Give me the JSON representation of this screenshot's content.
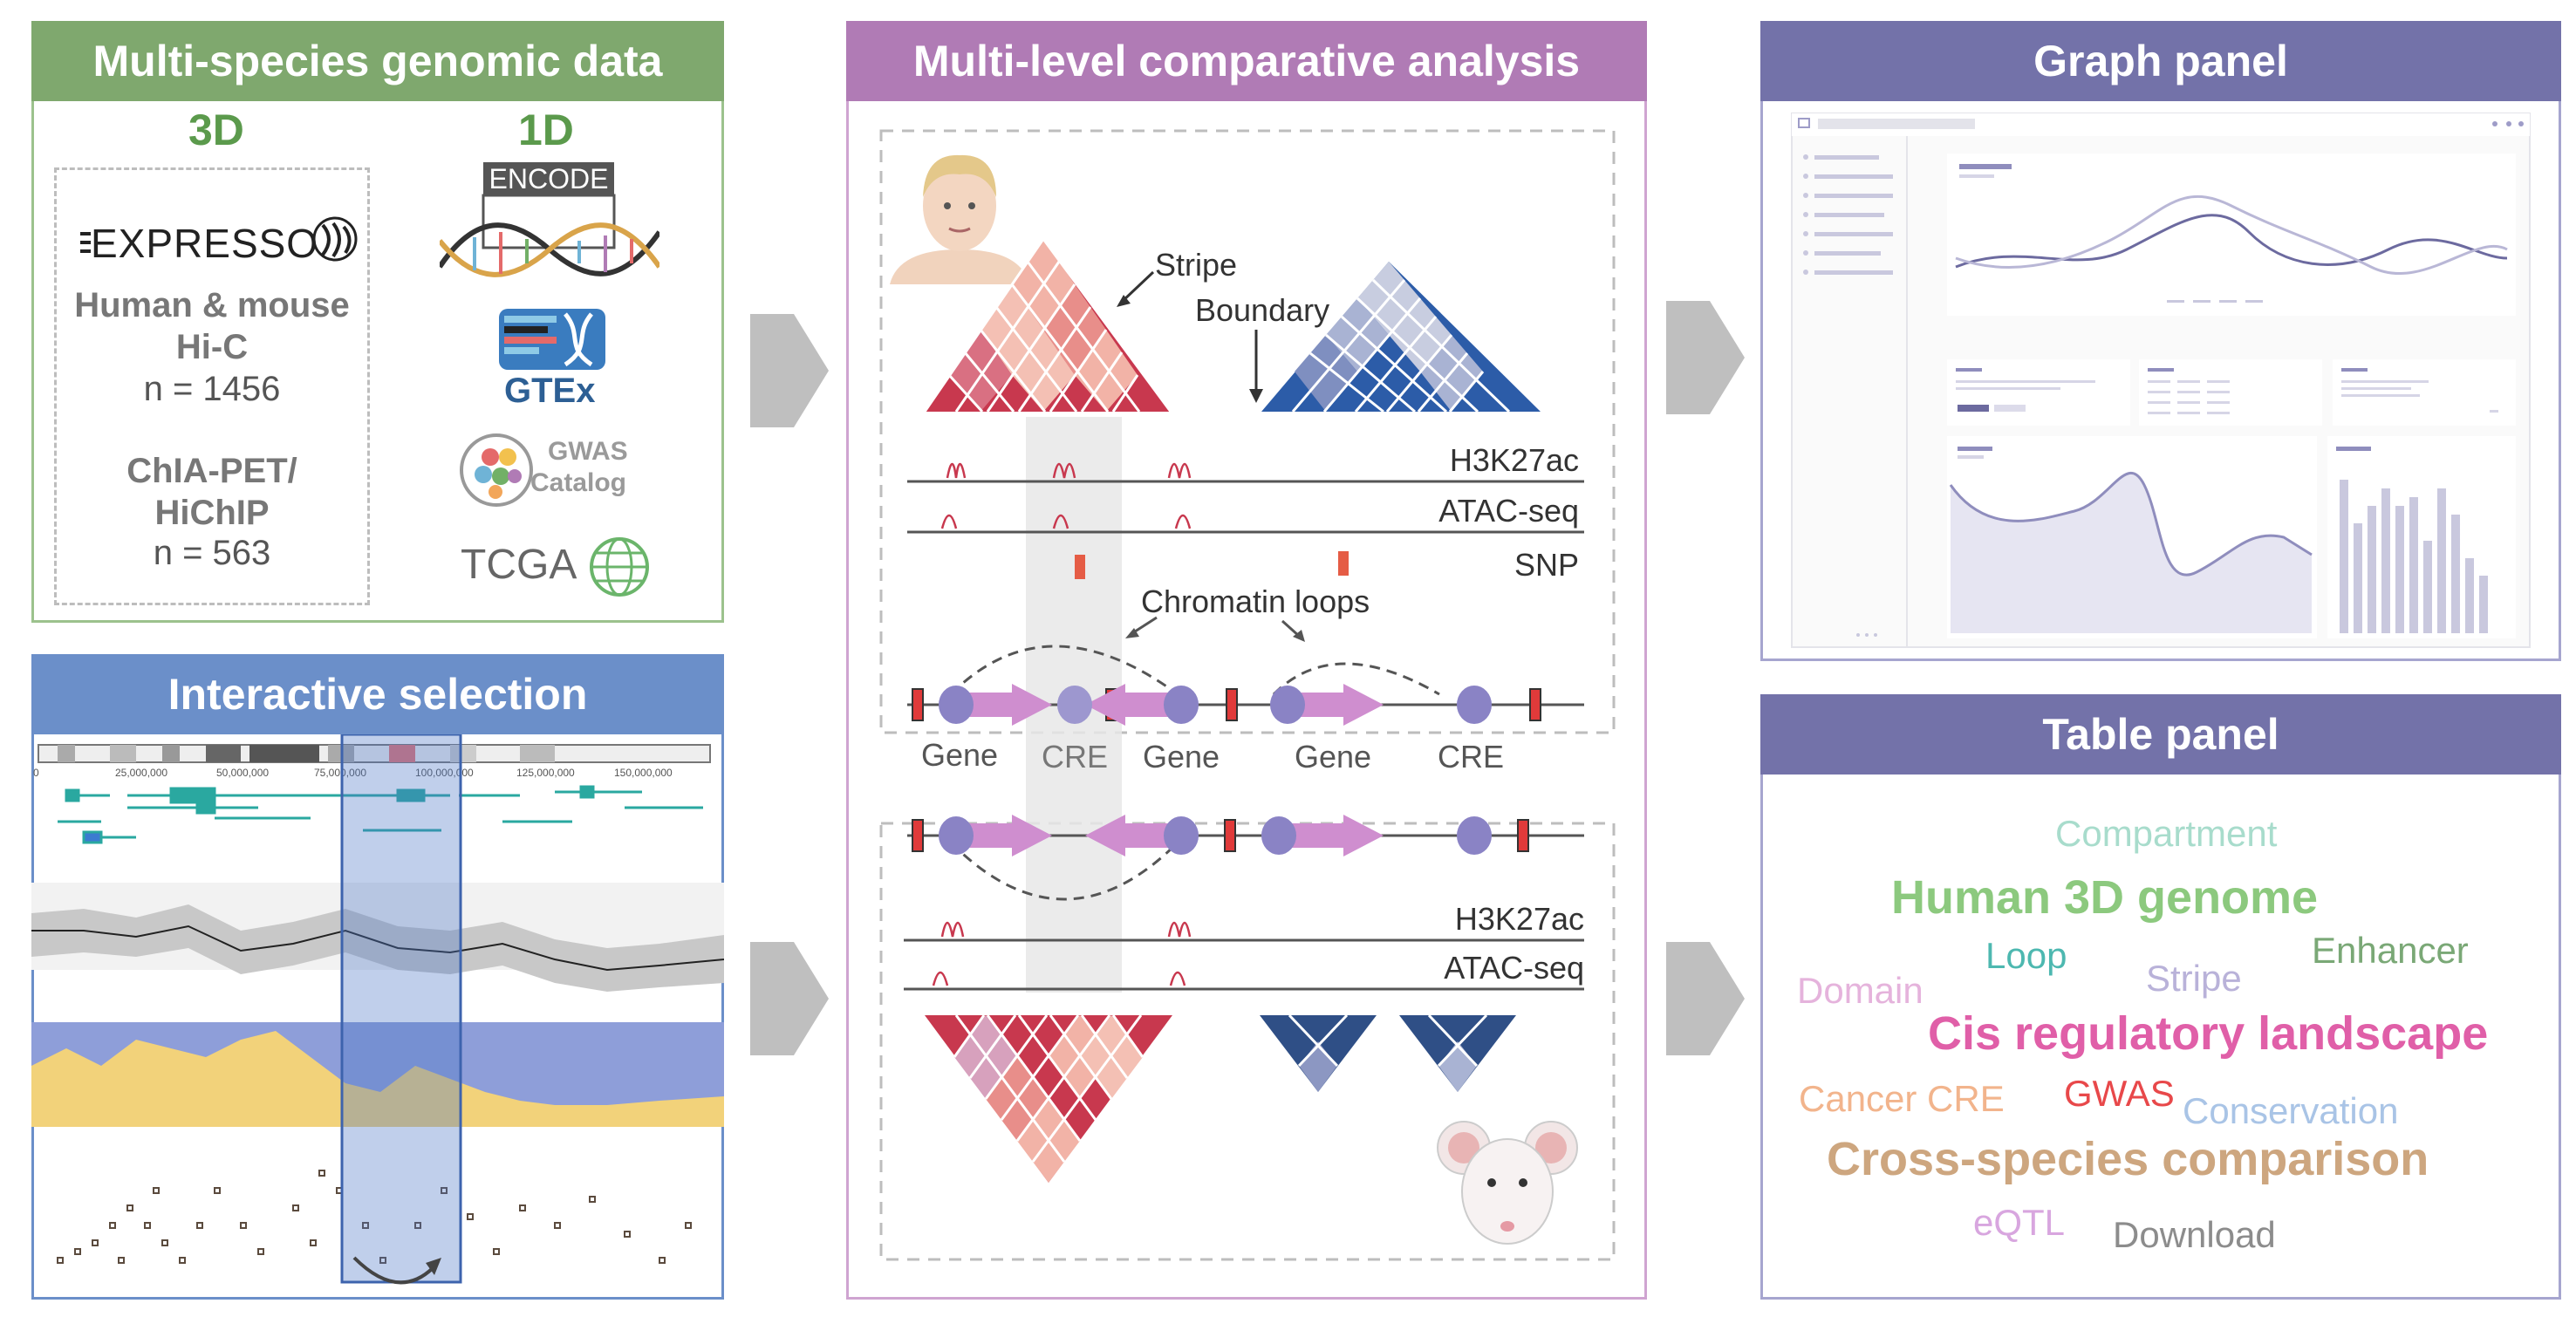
{
  "panels": {
    "genomic": {
      "title": "Multi-species genomic data",
      "col3d": "3D",
      "col1d": "1D",
      "expresso": "EXPRESSO",
      "hic_title": [
        "Human & mouse",
        "Hi-C"
      ],
      "hic_n": "n = 1456",
      "chia_title": [
        "ChIA-PET/",
        "HiChIP"
      ],
      "chia_n": "n = 563",
      "logos": {
        "encode": "ENCODE",
        "gtex": "GTEx",
        "gwas": [
          "GWAS",
          "Catalog"
        ],
        "tcga": "TCGA"
      }
    },
    "interactive": {
      "title": "Interactive selection",
      "ticks": [
        "0",
        "25,000,000",
        "50,000,000",
        "75,000,000",
        "100,000,000",
        "125,000,000",
        "150,000,000"
      ]
    },
    "comparative": {
      "title": "Multi-level comparative analysis",
      "stripe": "Stripe",
      "boundary": "Boundary",
      "tracks": {
        "h3k27ac": "H3K27ac",
        "atac": "ATAC-seq",
        "snp": "SNP"
      },
      "loops": "Chromatin loops",
      "elements": [
        "Gene",
        "CRE",
        "Gene",
        "Gene",
        "CRE"
      ]
    },
    "graph": {
      "title": "Graph panel"
    },
    "table": {
      "title": "Table panel",
      "words": [
        {
          "text": "Compartment",
          "color": "#a8dccc"
        },
        {
          "text": "Human 3D genome",
          "color": "#8cc97e"
        },
        {
          "text": "Loop",
          "color": "#4db8b0"
        },
        {
          "text": "Enhancer",
          "color": "#7aa876"
        },
        {
          "text": "Domain",
          "color": "#e5b3dc"
        },
        {
          "text": "Stripe",
          "color": "#b9b2d9"
        },
        {
          "text": "Cis regulatory landscape",
          "color": "#e05fa8"
        },
        {
          "text": "Cancer CRE",
          "color": "#f2b48c"
        },
        {
          "text": "GWAS",
          "color": "#e8484a"
        },
        {
          "text": "Conservation",
          "color": "#a9c4e6"
        },
        {
          "text": "Cross-species comparison",
          "color": "#cda67f"
        },
        {
          "text": "eQTL",
          "color": "#d8a6df"
        },
        {
          "text": "Download",
          "color": "#8c8c8c"
        }
      ]
    }
  },
  "colors": {
    "green": "#7fa86e",
    "blue_header": "#6b8fc9",
    "magenta": "#b07bb5",
    "purple": "#7372a9",
    "arrow": "#bfbfbf",
    "human_heat": "#c8384e",
    "mouse_heat": "#2c5ca8"
  }
}
